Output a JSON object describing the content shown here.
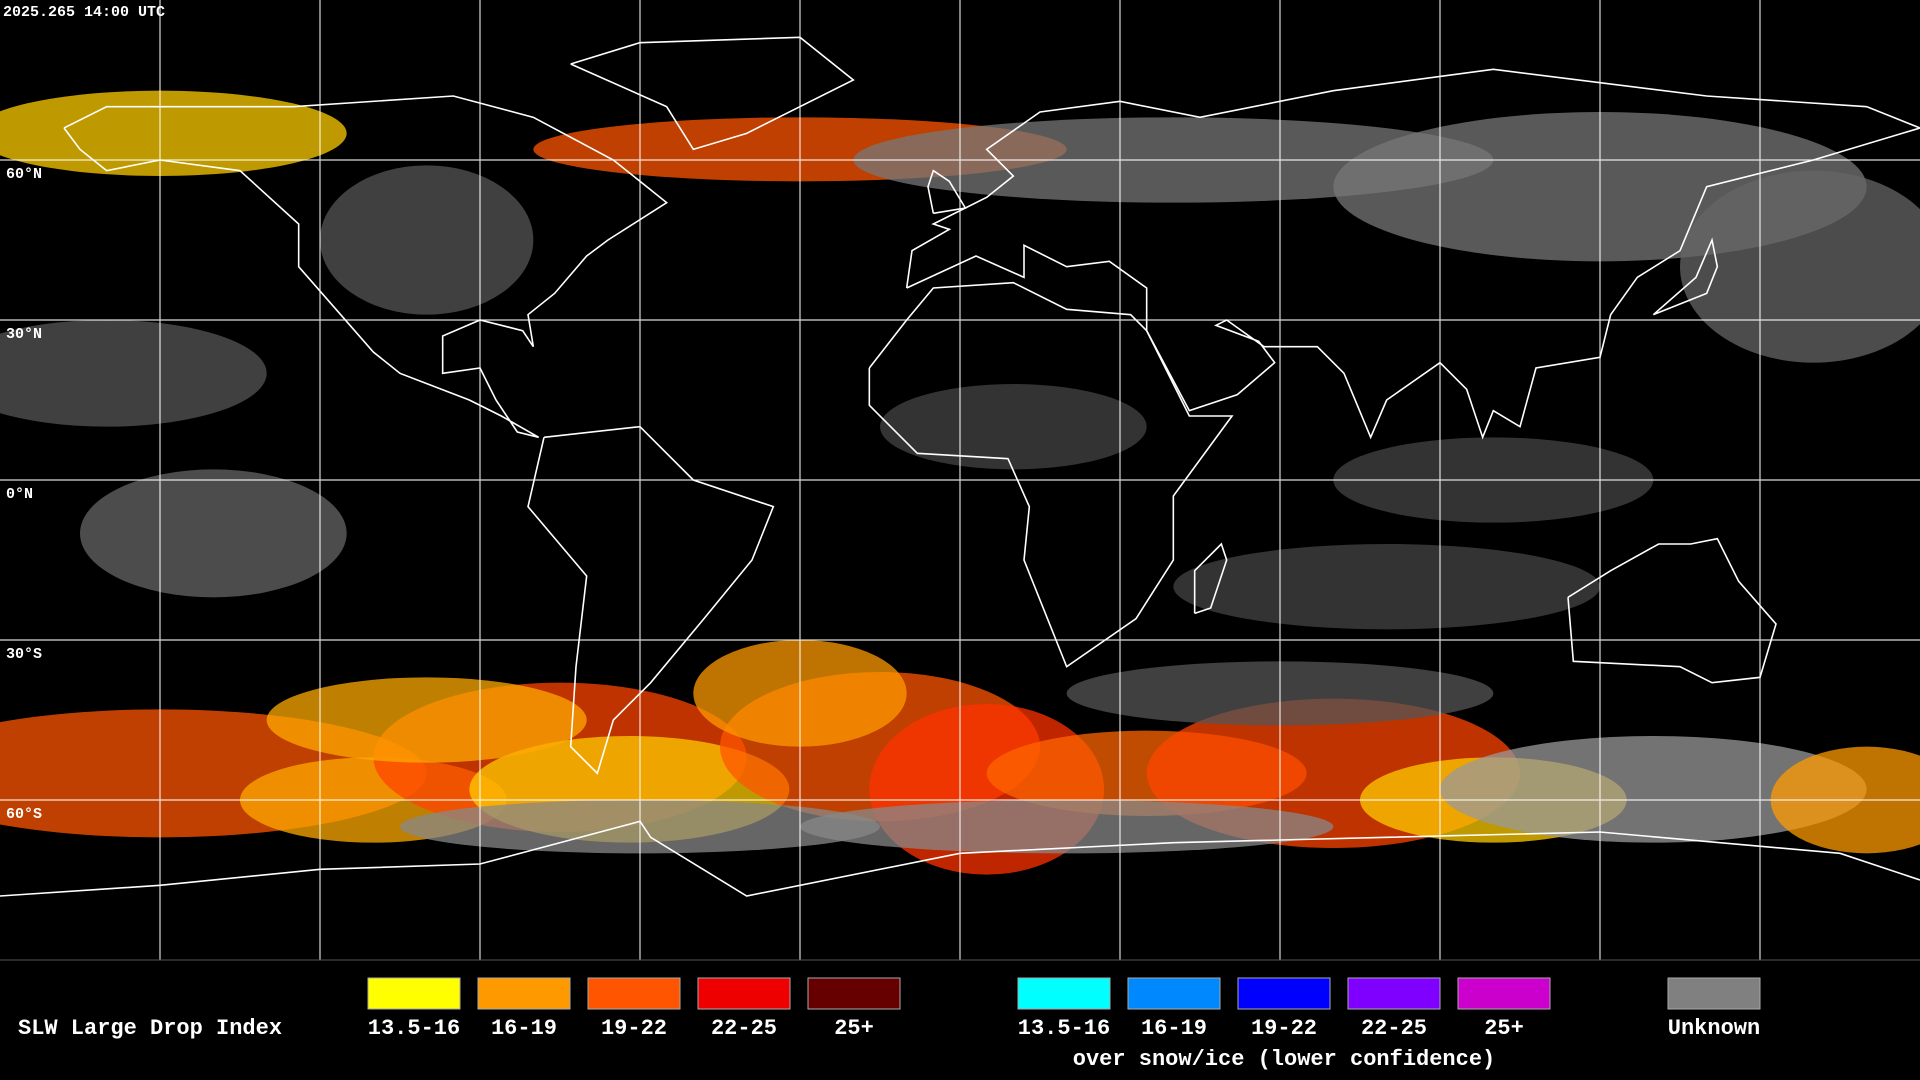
{
  "header": {
    "timestamp": "2025.265 14:00 UTC"
  },
  "map": {
    "latitude_labels": [
      "60°N",
      "30°N",
      "0°N",
      "30°S",
      "60°S"
    ]
  },
  "legend": {
    "title": "SLW Large Drop Index",
    "items": [
      {
        "label": "13.5-16",
        "color": "#ffff00"
      },
      {
        "label": "16-19",
        "color": "#ff9900"
      },
      {
        "label": "19-22",
        "color": "#ff5500"
      },
      {
        "label": "22-25",
        "color": "#ee0000"
      },
      {
        "label": "25+",
        "color": "#660000"
      }
    ],
    "snow_ice_items": [
      {
        "label": "13.5-16",
        "color": "#00ffff"
      },
      {
        "label": "16-19",
        "color": "#0088ff"
      },
      {
        "label": "19-22",
        "color": "#0000ff"
      },
      {
        "label": "22-25",
        "color": "#7f00ff"
      },
      {
        "label": "25+",
        "color": "#cc00cc"
      }
    ],
    "snow_ice_note": "over snow/ice (lower confidence)",
    "unknown": {
      "label": "Unknown",
      "color": "#808080"
    }
  }
}
